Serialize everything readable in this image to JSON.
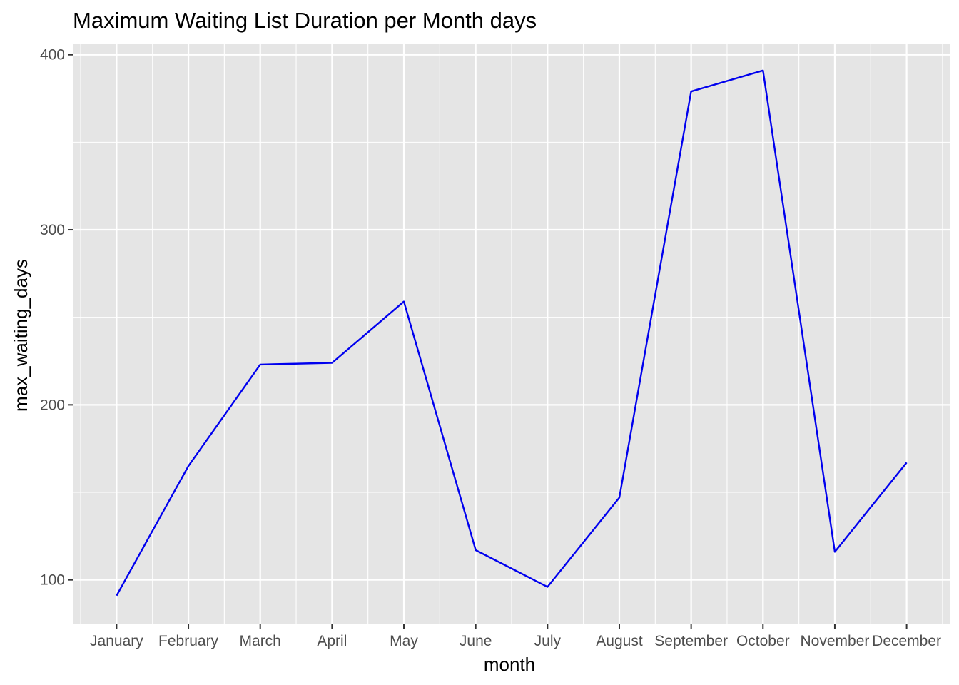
{
  "chart_data": {
    "type": "line",
    "title": "Maximum Waiting List Duration per Month days",
    "xlabel": "month",
    "ylabel": "max_waiting_days",
    "categories": [
      "January",
      "February",
      "March",
      "April",
      "May",
      "June",
      "July",
      "August",
      "September",
      "October",
      "November",
      "December"
    ],
    "series": [
      {
        "values": [
          91,
          165,
          223,
          224,
          259,
          117,
          96,
          147,
          379,
          391,
          116,
          167
        ]
      }
    ],
    "ylim": [
      75,
      406
    ],
    "yticks": [
      100,
      200,
      300,
      400
    ],
    "grid": true,
    "line_color": "#0000EE",
    "panel_background": "#E5E5E5",
    "grid_color": "#FFFFFF"
  }
}
